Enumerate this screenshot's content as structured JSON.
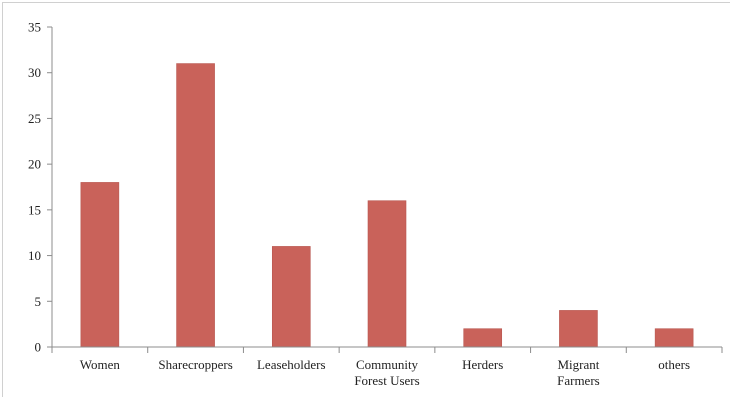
{
  "chart_data": {
    "type": "bar",
    "title": "",
    "xlabel": "",
    "ylabel": "",
    "categories": [
      [
        "Women"
      ],
      [
        "Sharecroppers"
      ],
      [
        "Leaseholders"
      ],
      [
        "Community",
        "Forest Users"
      ],
      [
        "Herders"
      ],
      [
        "Migrant",
        "Farmers"
      ],
      [
        "others"
      ]
    ],
    "values": [
      18,
      31,
      11,
      16,
      2,
      4,
      2
    ],
    "ylim": [
      0,
      35
    ],
    "yticks": [
      0,
      5,
      10,
      15,
      20,
      25,
      30,
      35
    ],
    "grid": false,
    "legend": "none",
    "bar_color": "#C9625A"
  }
}
